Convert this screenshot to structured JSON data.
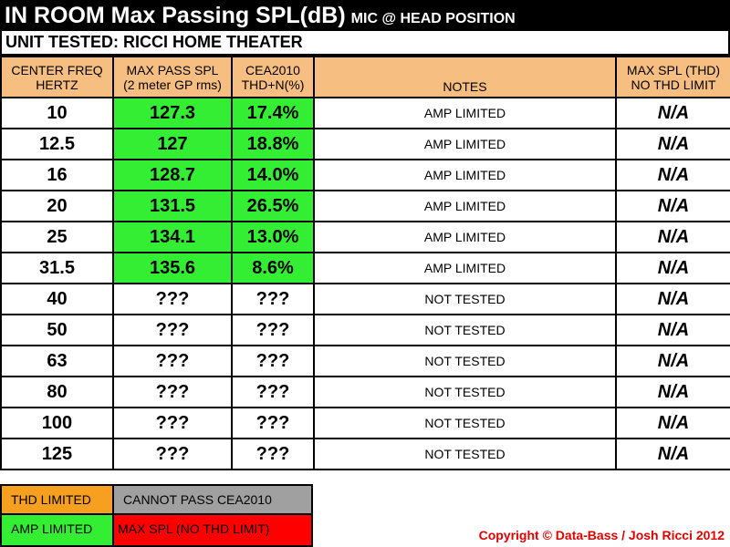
{
  "title": {
    "main": "IN ROOM Max Passing SPL(dB)",
    "sub": "MIC @ HEAD POSITION"
  },
  "unit_tested": "UNIT TESTED: RICCI HOME THEATER",
  "colors": {
    "header": "#f7be81",
    "amp_limited": "#33ee33",
    "thd_limited": "#f7a020",
    "cannot_pass": "#a0a0a0",
    "max_spl": "#ff0000",
    "copyright": "#e00000"
  },
  "chart_data": {
    "type": "table",
    "columns": [
      {
        "line1": "CENTER FREQ",
        "line2": "HERTZ"
      },
      {
        "line1": "MAX PASS SPL",
        "line2": "(2 meter GP rms)"
      },
      {
        "line1": "CEA2010",
        "line2": "THD+N(%)"
      },
      {
        "line1": "",
        "line2": "NOTES"
      },
      {
        "line1": "MAX SPL (THD)",
        "line2": "NO THD LIMIT"
      }
    ],
    "rows": [
      {
        "freq": "10",
        "spl": "127.3",
        "thd": "17.4%",
        "notes": "AMP LIMITED",
        "max_spl": "N/A",
        "status": "amp_limited"
      },
      {
        "freq": "12.5",
        "spl": "127",
        "thd": "18.8%",
        "notes": "AMP LIMITED",
        "max_spl": "N/A",
        "status": "amp_limited"
      },
      {
        "freq": "16",
        "spl": "128.7",
        "thd": "14.0%",
        "notes": "AMP LIMITED",
        "max_spl": "N/A",
        "status": "amp_limited"
      },
      {
        "freq": "20",
        "spl": "131.5",
        "thd": "26.5%",
        "notes": "AMP LIMITED",
        "max_spl": "N/A",
        "status": "amp_limited"
      },
      {
        "freq": "25",
        "spl": "134.1",
        "thd": "13.0%",
        "notes": "AMP LIMITED",
        "max_spl": "N/A",
        "status": "amp_limited"
      },
      {
        "freq": "31.5",
        "spl": "135.6",
        "thd": "8.6%",
        "notes": "AMP LIMITED",
        "max_spl": "N/A",
        "status": "amp_limited"
      },
      {
        "freq": "40",
        "spl": "???",
        "thd": "???",
        "notes": "NOT TESTED",
        "max_spl": "N/A",
        "status": "none"
      },
      {
        "freq": "50",
        "spl": "???",
        "thd": "???",
        "notes": "NOT TESTED",
        "max_spl": "N/A",
        "status": "none"
      },
      {
        "freq": "63",
        "spl": "???",
        "thd": "???",
        "notes": "NOT TESTED",
        "max_spl": "N/A",
        "status": "none"
      },
      {
        "freq": "80",
        "spl": "???",
        "thd": "???",
        "notes": "NOT TESTED",
        "max_spl": "N/A",
        "status": "none"
      },
      {
        "freq": "100",
        "spl": "???",
        "thd": "???",
        "notes": "NOT TESTED",
        "max_spl": "N/A",
        "status": "none"
      },
      {
        "freq": "125",
        "spl": "???",
        "thd": "???",
        "notes": "NOT TESTED",
        "max_spl": "N/A",
        "status": "none"
      }
    ]
  },
  "legend": {
    "thd_limited": "THD LIMITED",
    "cannot_pass": "CANNOT PASS CEA2010",
    "amp_limited": "AMP LIMITED",
    "max_spl": "MAX SPL (NO THD LIMIT)"
  },
  "copyright": "Copyright © Data-Bass / Josh Ricci 2012"
}
